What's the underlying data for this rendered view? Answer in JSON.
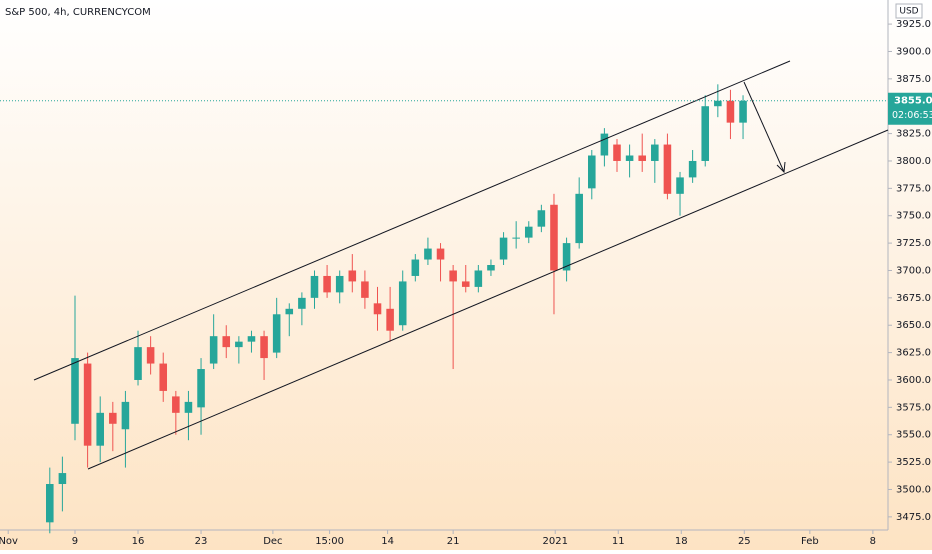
{
  "chart_data": {
    "type": "candlestick",
    "title": "S&P 500, 4h, CURRENCYCOM",
    "currency": "USD",
    "x": [
      3,
      4,
      5,
      6,
      7,
      8,
      9,
      10,
      11,
      12,
      13,
      14,
      15,
      16,
      17,
      18,
      19,
      20,
      21,
      22,
      23,
      24,
      25,
      26,
      27,
      28,
      29,
      30,
      31,
      32,
      33,
      34,
      35,
      36,
      37,
      38,
      39,
      40,
      41,
      42,
      43,
      44,
      45,
      46,
      47,
      48,
      49,
      50,
      51,
      52,
      53,
      54,
      55,
      56,
      57,
      58
    ],
    "open": [
      3470,
      3505,
      3560,
      3615,
      3540,
      3570,
      3555,
      3600,
      3630,
      3615,
      3585,
      3570,
      3575,
      3615,
      3640,
      3630,
      3635,
      3640,
      3625,
      3660,
      3665,
      3675,
      3695,
      3680,
      3700,
      3690,
      3670,
      3665,
      3650,
      3695,
      3710,
      3720,
      3700,
      3690,
      3685,
      3700,
      3710,
      3730,
      3730,
      3740,
      3760,
      3700,
      3725,
      3775,
      3805,
      3815,
      3800,
      3805,
      3800,
      3815,
      3770,
      3785,
      3800,
      3850,
      3855,
      3835
    ],
    "high": [
      3520,
      3530,
      3677,
      3625,
      3585,
      3580,
      3590,
      3645,
      3640,
      3625,
      3590,
      3590,
      3620,
      3660,
      3650,
      3640,
      3645,
      3645,
      3675,
      3670,
      3680,
      3700,
      3705,
      3700,
      3715,
      3700,
      3685,
      3685,
      3700,
      3715,
      3730,
      3725,
      3705,
      3705,
      3705,
      3710,
      3735,
      3745,
      3745,
      3760,
      3770,
      3730,
      3785,
      3810,
      3830,
      3820,
      3815,
      3825,
      3820,
      3825,
      3790,
      3810,
      3860,
      3870,
      3865,
      3860
    ],
    "low": [
      3460,
      3480,
      3545,
      3520,
      3525,
      3535,
      3520,
      3595,
      3605,
      3580,
      3550,
      3545,
      3550,
      3610,
      3620,
      3615,
      3625,
      3600,
      3620,
      3640,
      3650,
      3665,
      3675,
      3670,
      3680,
      3665,
      3645,
      3635,
      3645,
      3690,
      3705,
      3690,
      3610,
      3680,
      3680,
      3695,
      3705,
      3720,
      3725,
      3735,
      3660,
      3690,
      3720,
      3765,
      3795,
      3790,
      3785,
      3790,
      3780,
      3765,
      3750,
      3780,
      3795,
      3840,
      3820,
      3820
    ],
    "close": [
      3505,
      3515,
      3620,
      3540,
      3570,
      3560,
      3580,
      3630,
      3615,
      3590,
      3570,
      3580,
      3610,
      3640,
      3630,
      3635,
      3640,
      3620,
      3660,
      3665,
      3675,
      3695,
      3680,
      3695,
      3690,
      3675,
      3660,
      3645,
      3690,
      3710,
      3720,
      3710,
      3690,
      3685,
      3700,
      3705,
      3730,
      3730,
      3740,
      3755,
      3700,
      3725,
      3770,
      3805,
      3825,
      3800,
      3805,
      3800,
      3815,
      3770,
      3785,
      3800,
      3850,
      3855,
      3835,
      3855
    ],
    "up_color": "#26a69a",
    "down_color": "#ef5350",
    "xlim": [
      -0.95,
      69.5
    ],
    "xticks": [
      {
        "value": -0.3,
        "label": "Nov"
      },
      {
        "value": 5,
        "label": "9"
      },
      {
        "value": 10,
        "label": "16"
      },
      {
        "value": 15,
        "label": "23"
      },
      {
        "value": 20.7,
        "label": "Dec"
      },
      {
        "value": 25.2,
        "label": "15:00"
      },
      {
        "value": 29.8,
        "label": "14"
      },
      {
        "value": 35,
        "label": "21"
      },
      {
        "value": 43.1,
        "label": "2021"
      },
      {
        "value": 48.1,
        "label": "11"
      },
      {
        "value": 53.1,
        "label": "18"
      },
      {
        "value": 58.1,
        "label": "25"
      },
      {
        "value": 63.3,
        "label": "Feb"
      },
      {
        "value": 68.3,
        "label": "8"
      }
    ],
    "ylim": [
      3463,
      3947
    ],
    "yticks": [
      {
        "value": 3475,
        "label": "3475.0"
      },
      {
        "value": 3500,
        "label": "3500.0"
      },
      {
        "value": 3525,
        "label": "3525.0"
      },
      {
        "value": 3550,
        "label": "3550.0"
      },
      {
        "value": 3575,
        "label": "3575.0"
      },
      {
        "value": 3600,
        "label": "3600.0"
      },
      {
        "value": 3625,
        "label": "3625.0"
      },
      {
        "value": 3650,
        "label": "3650.0"
      },
      {
        "value": 3675,
        "label": "3675.0"
      },
      {
        "value": 3700,
        "label": "3700.0"
      },
      {
        "value": 3725,
        "label": "3725.0"
      },
      {
        "value": 3750,
        "label": "3750.0"
      },
      {
        "value": 3775,
        "label": "3775.0"
      },
      {
        "value": 3800,
        "label": "3800.0"
      },
      {
        "value": 3825,
        "label": "3825.0"
      },
      {
        "value": 3850,
        "label": "3850.0"
      },
      {
        "value": 3875,
        "label": "3875.0"
      },
      {
        "value": 3900,
        "label": "3900.0"
      },
      {
        "value": 3925,
        "label": "3925.0"
      }
    ],
    "last_price": {
      "value": 3855,
      "label": "3855.0"
    },
    "countdown": "02:06:53"
  }
}
